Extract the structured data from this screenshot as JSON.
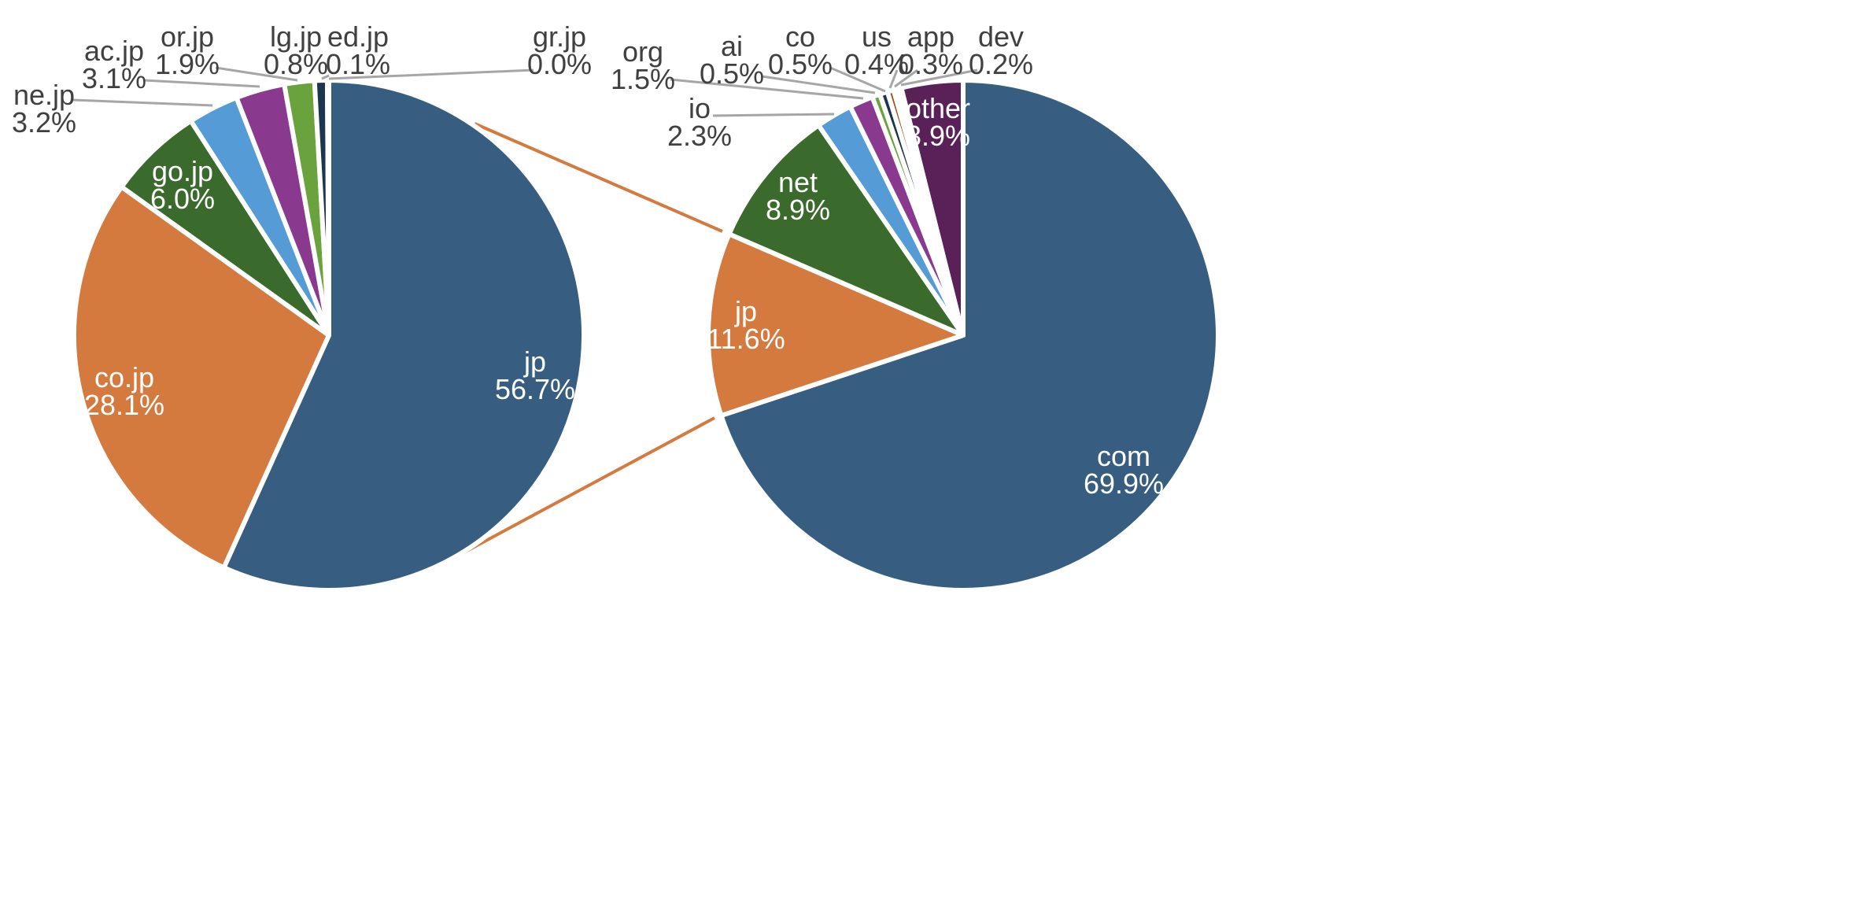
{
  "chart_data": [
    {
      "type": "pie",
      "slices": [
        {
          "label": "jp",
          "value": 56.7,
          "display": "56.7%",
          "color": "#375D81"
        },
        {
          "label": "co.jp",
          "value": 28.1,
          "display": "28.1%",
          "color": "#D47A3F"
        },
        {
          "label": "go.jp",
          "value": 6.0,
          "display": "6.0%",
          "color": "#3A6A2C"
        },
        {
          "label": "ne.jp",
          "value": 3.2,
          "display": "3.2%",
          "color": "#559BD5"
        },
        {
          "label": "ac.jp",
          "value": 3.1,
          "display": "3.1%",
          "color": "#8A3A8E"
        },
        {
          "label": "or.jp",
          "value": 1.9,
          "display": "1.9%",
          "color": "#6AA33E"
        },
        {
          "label": "lg.jp",
          "value": 0.8,
          "display": "0.8%",
          "color": "#1C3650"
        },
        {
          "label": "ed.jp",
          "value": 0.1,
          "display": "0.1%",
          "color": "#9A4E20"
        },
        {
          "label": "gr.jp",
          "value": 0.0,
          "display": "0.0%",
          "color": "#23451C"
        }
      ]
    },
    {
      "type": "pie",
      "slices": [
        {
          "label": "com",
          "value": 69.9,
          "display": "69.9%",
          "color": "#375D81"
        },
        {
          "label": "jp",
          "value": 11.6,
          "display": "11.6%",
          "color": "#D47A3F"
        },
        {
          "label": "net",
          "value": 8.9,
          "display": "8.9%",
          "color": "#3A6A2C"
        },
        {
          "label": "io",
          "value": 2.3,
          "display": "2.3%",
          "color": "#559BD5"
        },
        {
          "label": "org",
          "value": 1.5,
          "display": "1.5%",
          "color": "#8A3A8E"
        },
        {
          "label": "ai",
          "value": 0.5,
          "display": "0.5%",
          "color": "#6AA33E"
        },
        {
          "label": "co",
          "value": 0.5,
          "display": "0.5%",
          "color": "#1C3650"
        },
        {
          "label": "us",
          "value": 0.4,
          "display": "0.4%",
          "color": "#9A4E20"
        },
        {
          "label": "app",
          "value": 0.3,
          "display": "0.3%",
          "color": "#23451C"
        },
        {
          "label": "dev",
          "value": 0.2,
          "display": "0.2%",
          "color": "#2E6EA8"
        },
        {
          "label": "other",
          "value": 3.9,
          "display": "3.9%",
          "color": "#5A2058"
        }
      ]
    }
  ],
  "connector_color": "#D47A3F",
  "leader_color": "#A6A6A6"
}
